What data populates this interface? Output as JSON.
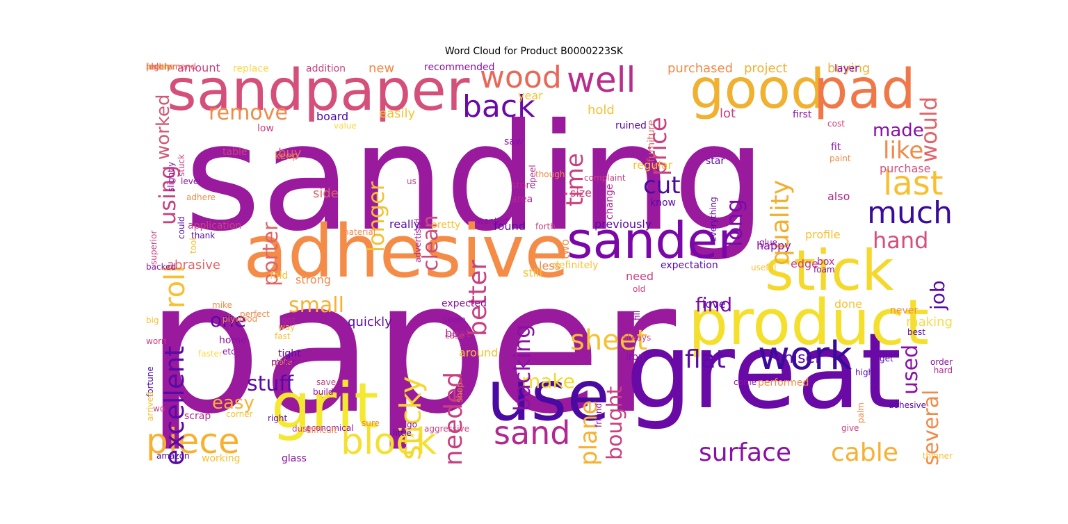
{
  "title": "Word Cloud for Product B0000223SK",
  "words": [
    {
      "text": "sanding",
      "color": "#9a1a9e"
    },
    {
      "text": "paper",
      "color": "#9a1a9e"
    },
    {
      "text": "great",
      "color": "#6a0aa6"
    },
    {
      "text": "adhesive",
      "color": "#f48c48"
    },
    {
      "text": "sandpaper",
      "color": "#d4507a"
    },
    {
      "text": "good",
      "color": "#f0b030"
    },
    {
      "text": "pad",
      "color": "#f07848"
    },
    {
      "text": "product",
      "color": "#f4e02c"
    },
    {
      "text": "stick",
      "color": "#f4d82c"
    },
    {
      "text": "use",
      "color": "#4a0aa2"
    },
    {
      "text": "grit",
      "color": "#f4e830"
    },
    {
      "text": "sander",
      "color": "#7a08a8"
    },
    {
      "text": "well",
      "color": "#b82c8c"
    },
    {
      "text": "wood",
      "color": "#e86858"
    },
    {
      "text": "back",
      "color": "#6a0aa6"
    },
    {
      "text": "work",
      "color": "#3a0a9a"
    },
    {
      "text": "piece",
      "color": "#f8b030"
    },
    {
      "text": "block",
      "color": "#f4e030"
    },
    {
      "text": "sand",
      "color": "#b02890"
    },
    {
      "text": "sheet",
      "color": "#f8c030"
    },
    {
      "text": "last",
      "color": "#f8c030"
    },
    {
      "text": "much",
      "color": "#3a0a9a"
    },
    {
      "text": "surface",
      "color": "#8a10a4"
    },
    {
      "text": "cable",
      "color": "#f8b030"
    },
    {
      "text": "roll",
      "color": "#f8c030"
    },
    {
      "text": "remove",
      "color": "#f08a48"
    },
    {
      "text": "excellent",
      "color": "#5a0aa6"
    },
    {
      "text": "sticky",
      "color": "#f4d82c"
    },
    {
      "text": "using",
      "color": "#c84080"
    },
    {
      "text": "worked",
      "color": "#d05874"
    },
    {
      "text": "longer",
      "color": "#f4c030"
    },
    {
      "text": "clean",
      "color": "#cc4a7c"
    },
    {
      "text": "better",
      "color": "#c84080"
    },
    {
      "text": "time",
      "color": "#c84080"
    },
    {
      "text": "price",
      "color": "#c84080"
    },
    {
      "text": "cut",
      "color": "#4a0aa2"
    },
    {
      "text": "long",
      "color": "#7a0aa8"
    },
    {
      "text": "quality",
      "color": "#f0b030"
    },
    {
      "text": "like",
      "color": "#f08a48"
    },
    {
      "text": "would",
      "color": "#e06468"
    },
    {
      "text": "made",
      "color": "#8a10a4"
    },
    {
      "text": "hand",
      "color": "#d4507a"
    },
    {
      "text": "job",
      "color": "#5a0aa6"
    },
    {
      "text": "porter",
      "color": "#e06468"
    },
    {
      "text": "small",
      "color": "#f8b030"
    },
    {
      "text": "one",
      "color": "#5a0aa6"
    },
    {
      "text": "stuff",
      "color": "#5a0aa6"
    },
    {
      "text": "easy",
      "color": "#f8b030"
    },
    {
      "text": "make",
      "color": "#f4d82c"
    },
    {
      "text": "backing",
      "color": "#8a10a4"
    },
    {
      "text": "plane",
      "color": "#f8b030"
    },
    {
      "text": "bought",
      "color": "#c84080"
    },
    {
      "text": "needed",
      "color": "#c84080"
    },
    {
      "text": "flat",
      "color": "#5a0aa6"
    },
    {
      "text": "find",
      "color": "#7a0aa8"
    },
    {
      "text": "used",
      "color": "#8a10a4"
    },
    {
      "text": "several",
      "color": "#f08a48"
    },
    {
      "text": "chisel",
      "color": "#5a0aa6"
    },
    {
      "text": "purchased",
      "color": "#f08a48"
    },
    {
      "text": "project",
      "color": "#f0b030"
    },
    {
      "text": "buying",
      "color": "#f0b030"
    },
    {
      "text": "amount",
      "color": "#c84080"
    },
    {
      "text": "replace",
      "color": "#f8d848"
    },
    {
      "text": "addition",
      "color": "#c84080"
    },
    {
      "text": "new",
      "color": "#f08a48"
    },
    {
      "text": "recommended",
      "color": "#8a10a4"
    },
    {
      "text": "layer",
      "color": "#8a10a4"
    },
    {
      "text": "easily",
      "color": "#f8c030"
    },
    {
      "text": "board",
      "color": "#4a0aa2"
    },
    {
      "text": "hold",
      "color": "#f8c030"
    },
    {
      "text": "year",
      "color": "#f8c030"
    },
    {
      "text": "lot",
      "color": "#c84080"
    },
    {
      "text": "furniture",
      "color": "#e06468"
    },
    {
      "text": "ruined",
      "color": "#5a0aa6"
    },
    {
      "text": "low",
      "color": "#c84080"
    },
    {
      "text": "buy",
      "color": "#e06468"
    },
    {
      "text": "table",
      "color": "#c84080"
    },
    {
      "text": "keep",
      "color": "#f08a48"
    },
    {
      "text": "regular",
      "color": "#f8c030"
    },
    {
      "text": "star",
      "color": "#5a0aa6"
    },
    {
      "text": "first",
      "color": "#8a10a4"
    },
    {
      "text": "cost",
      "color": "#c84080"
    },
    {
      "text": "fit",
      "color": "#8a10a4"
    },
    {
      "text": "paint",
      "color": "#f08a48"
    },
    {
      "text": "purchase",
      "color": "#d4507a"
    },
    {
      "text": "also",
      "color": "#b02890"
    },
    {
      "text": "side",
      "color": "#e06468"
    },
    {
      "text": "store",
      "color": "#b02890"
    },
    {
      "text": "area",
      "color": "#b02890"
    },
    {
      "text": "size",
      "color": "#c84080"
    },
    {
      "text": "change",
      "color": "#b02890"
    },
    {
      "text": "complaint",
      "color": "#c84080"
    },
    {
      "text": "know",
      "color": "#5a0aa6"
    },
    {
      "text": "everything",
      "color": "#5a0aa6"
    },
    {
      "text": "peel",
      "color": "#b02890"
    },
    {
      "text": "though",
      "color": "#f08a48"
    },
    {
      "text": "us",
      "color": "#c84080"
    },
    {
      "text": "advertised",
      "color": "#b02890"
    },
    {
      "text": "saw",
      "color": "#8a10a4"
    },
    {
      "text": "value",
      "color": "#f8d848"
    },
    {
      "text": "stuck",
      "color": "#c84080"
    },
    {
      "text": "slightly",
      "color": "#8a10a4"
    },
    {
      "text": "level",
      "color": "#8a10a4"
    },
    {
      "text": "adhere",
      "color": "#f08a48"
    },
    {
      "text": "could",
      "color": "#5a0aa6"
    },
    {
      "text": "superior",
      "color": "#c84080"
    },
    {
      "text": "application",
      "color": "#c84080"
    },
    {
      "text": "thank",
      "color": "#5a0aa6"
    },
    {
      "text": "tool",
      "color": "#f8c030"
    },
    {
      "text": "material",
      "color": "#f08a48"
    },
    {
      "text": "really",
      "color": "#5a0aa6"
    },
    {
      "text": "pretty",
      "color": "#f8c030"
    },
    {
      "text": "wanted",
      "color": "#8a10a4"
    },
    {
      "text": "found",
      "color": "#5a0aa6"
    },
    {
      "text": "forth",
      "color": "#c84080"
    },
    {
      "text": "two",
      "color": "#f08a48"
    },
    {
      "text": "previously",
      "color": "#5a0aa6"
    },
    {
      "text": "glue",
      "color": "#8a10a4"
    },
    {
      "text": "profile",
      "color": "#f8c030"
    },
    {
      "text": "happy",
      "color": "#8a10a4"
    },
    {
      "text": "abrasive",
      "color": "#e06468"
    },
    {
      "text": "less",
      "color": "#f08a48"
    },
    {
      "text": "definitely",
      "color": "#f8c030"
    },
    {
      "text": "expectation",
      "color": "#5a0aa6"
    },
    {
      "text": "useful",
      "color": "#f8c030"
    },
    {
      "text": "foam",
      "color": "#8a10a4"
    },
    {
      "text": "edge",
      "color": "#c84080"
    },
    {
      "text": "box",
      "color": "#b02890"
    },
    {
      "text": "backed",
      "color": "#8a10a4"
    },
    {
      "text": "fold",
      "color": "#f8c030"
    },
    {
      "text": "strong",
      "color": "#f08a48"
    },
    {
      "text": "still",
      "color": "#f8c030"
    },
    {
      "text": "need",
      "color": "#c84080"
    },
    {
      "text": "old",
      "color": "#c84080"
    },
    {
      "text": "fill",
      "color": "#8a10a4"
    },
    {
      "text": "love",
      "color": "#5a0aa6"
    },
    {
      "text": "done",
      "color": "#f8c030"
    },
    {
      "text": "never",
      "color": "#f08a48"
    },
    {
      "text": "mike",
      "color": "#f08a48"
    },
    {
      "text": "plywood",
      "color": "#f08a48"
    },
    {
      "text": "perfect",
      "color": "#f08a48"
    },
    {
      "text": "expected",
      "color": "#8a10a4"
    },
    {
      "text": "seem",
      "color": "#8a10a4"
    },
    {
      "text": "got",
      "color": "#b02890"
    },
    {
      "text": "big",
      "color": "#f8c030"
    },
    {
      "text": "way",
      "color": "#f8c030"
    },
    {
      "text": "fast",
      "color": "#f8c030"
    },
    {
      "text": "quickly",
      "color": "#5a0aa6"
    },
    {
      "text": "beat",
      "color": "#b02890"
    },
    {
      "text": "case",
      "color": "#c84080"
    },
    {
      "text": "making",
      "color": "#f8d848"
    },
    {
      "text": "best",
      "color": "#5a0aa6"
    },
    {
      "text": "home",
      "color": "#8a10a4"
    },
    {
      "text": "etc",
      "color": "#8a10a4"
    },
    {
      "text": "worn",
      "color": "#c84080"
    },
    {
      "text": "fortune",
      "color": "#4a0aa2"
    },
    {
      "text": "faster",
      "color": "#f8d848"
    },
    {
      "text": "plate",
      "color": "#f08a48"
    },
    {
      "text": "must",
      "color": "#8a10a4"
    },
    {
      "text": "order",
      "color": "#8a10a4"
    },
    {
      "text": "iron",
      "color": "#8a10a4"
    },
    {
      "text": "tight",
      "color": "#5a0aa6"
    },
    {
      "text": "hard",
      "color": "#b02890"
    },
    {
      "text": "around",
      "color": "#f8c030"
    },
    {
      "text": "performed",
      "color": "#f08a48"
    },
    {
      "text": "high",
      "color": "#5a0aa6"
    },
    {
      "text": "arrived",
      "color": "#f8c030"
    },
    {
      "text": "always",
      "color": "#c84080"
    },
    {
      "text": "save",
      "color": "#c84080"
    },
    {
      "text": "shop",
      "color": "#f08a48"
    },
    {
      "text": "come",
      "color": "#8a10a4"
    },
    {
      "text": "friend",
      "color": "#8a10a4"
    },
    {
      "text": "wo",
      "color": "#c84080"
    },
    {
      "text": "get",
      "color": "#5a0aa6"
    },
    {
      "text": "palm",
      "color": "#f08a48"
    },
    {
      "text": "right",
      "color": "#5a0aa6"
    },
    {
      "text": "scrap",
      "color": "#b02890"
    },
    {
      "text": "build",
      "color": "#8a10a4"
    },
    {
      "text": "economical",
      "color": "#8a10a4"
    },
    {
      "text": "adhesive",
      "color": "#5a0aa6"
    },
    {
      "text": "corner",
      "color": "#f8c030"
    },
    {
      "text": "go",
      "color": "#8a10a4"
    },
    {
      "text": "aggressive",
      "color": "#c84080"
    },
    {
      "text": "sure",
      "color": "#f08a48"
    },
    {
      "text": "little",
      "color": "#5a0aa6"
    },
    {
      "text": "give",
      "color": "#c84080"
    },
    {
      "text": "dust",
      "color": "#c84080"
    },
    {
      "text": "difficult",
      "color": "#f08a48"
    },
    {
      "text": "amazon",
      "color": "#4a0aa2"
    },
    {
      "text": "working",
      "color": "#f8c030"
    },
    {
      "text": "glass",
      "color": "#8a10a4"
    },
    {
      "text": "thinner",
      "color": "#f8c030"
    },
    {
      "text": "able",
      "color": "#c84080"
    },
    {
      "text": "pas",
      "color": "#c84080"
    },
    {
      "text": "far",
      "color": "#f8c030"
    },
    {
      "text": "seems",
      "color": "#f8c030"
    },
    {
      "text": "another",
      "color": "#f8c030"
    },
    {
      "text": "recommend",
      "color": "#e06468"
    },
    {
      "text": "highly",
      "color": "#e06468"
    }
  ]
}
